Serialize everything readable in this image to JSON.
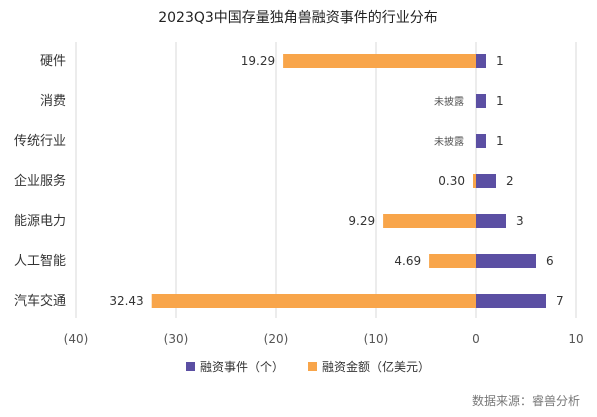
{
  "chart_data": {
    "type": "bar",
    "orientation": "horizontal",
    "title": "2023Q3中国存量独角兽融资事件的行业分布",
    "categories": [
      "硬件",
      "消费",
      "传统行业",
      "企业服务",
      "能源电力",
      "人工智能",
      "汽车交通"
    ],
    "series": [
      {
        "name": "融资事件（个）",
        "color": "#5b4fa3",
        "values": [
          1,
          1,
          1,
          2,
          3,
          6,
          7
        ],
        "labels": [
          "1",
          "1",
          "1",
          "2",
          "3",
          "6",
          "7"
        ]
      },
      {
        "name": "融资金额（亿美元）",
        "color": "#f8a54a",
        "values": [
          -19.29,
          null,
          null,
          -0.3,
          -9.29,
          -4.69,
          -32.43
        ],
        "labels": [
          "19.29",
          "未披露",
          "未披露",
          "0.30",
          "9.29",
          "4.69",
          "32.43"
        ]
      }
    ],
    "xlim": [
      -40,
      10
    ],
    "xticks": [
      -40,
      -30,
      -20,
      -10,
      0,
      10
    ],
    "xtick_labels": [
      "(40)",
      "(30)",
      "(20)",
      "(10)",
      "0",
      "10"
    ],
    "grid": true,
    "legend_position": "bottom",
    "source": "数据来源：睿兽分析"
  }
}
